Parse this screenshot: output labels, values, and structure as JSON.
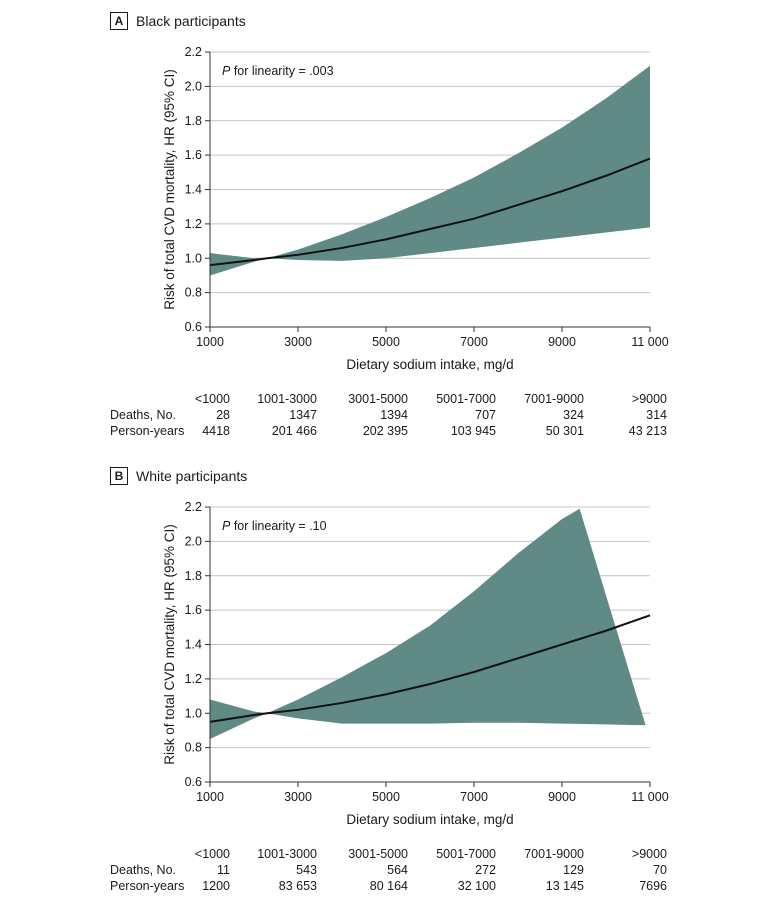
{
  "chart_data": [
    {
      "type": "line",
      "panel_letter": "A",
      "title": "Black participants",
      "xlabel": "Dietary sodium intake, mg/d",
      "ylabel": "Risk of total CVD mortality, HR (95% CI)",
      "xlim": [
        1000,
        11000
      ],
      "ylim": [
        0.6,
        2.2
      ],
      "xticks": [
        1000,
        3000,
        5000,
        7000,
        9000,
        11000
      ],
      "xtick_labels": [
        "1000",
        "3000",
        "5000",
        "7000",
        "9000",
        "11 000"
      ],
      "yticks": [
        0.6,
        0.8,
        1.0,
        1.2,
        1.4,
        1.6,
        1.8,
        2.0,
        2.2
      ],
      "ytick_labels": [
        "0.6",
        "0.8",
        "1.0",
        "1.2",
        "1.4",
        "1.6",
        "1.8",
        "2.0",
        "2.2"
      ],
      "grid": true,
      "annotation": {
        "p_label": "P",
        "rest": " for linearity = .003"
      },
      "series": [
        {
          "name": "HR",
          "x": [
            1000,
            2000,
            2300,
            3000,
            4000,
            5000,
            6000,
            7000,
            8000,
            9000,
            10000,
            11000
          ],
          "y": [
            0.96,
            0.99,
            1.0,
            1.02,
            1.06,
            1.11,
            1.17,
            1.23,
            1.31,
            1.39,
            1.48,
            1.58
          ]
        },
        {
          "name": "95% CI upper",
          "x": [
            1000,
            2000,
            2300,
            3000,
            4000,
            5000,
            6000,
            7000,
            8000,
            9000,
            10000,
            11000
          ],
          "y": [
            0.9,
            0.98,
            1.0,
            1.05,
            1.14,
            1.24,
            1.35,
            1.47,
            1.61,
            1.76,
            1.93,
            2.12
          ]
        },
        {
          "name": "95% CI lower",
          "x": [
            1000,
            2000,
            2300,
            3000,
            4000,
            5000,
            6000,
            7000,
            8000,
            9000,
            10000,
            11000
          ],
          "y": [
            1.03,
            1.0,
            1.0,
            0.99,
            0.985,
            1.0,
            1.03,
            1.06,
            1.09,
            1.12,
            1.15,
            1.18
          ]
        }
      ],
      "table": {
        "categories": [
          "<1000",
          "1001-3000",
          "3001-5000",
          "5001-7000",
          "7001-9000",
          ">9000"
        ],
        "rows": [
          {
            "label": "Deaths, No.",
            "values": [
              "28",
              "1347",
              "1394",
              "707",
              "324",
              "314"
            ]
          },
          {
            "label": "Person-years",
            "values": [
              "4418",
              "201 466",
              "202 395",
              "103 945",
              "50 301",
              "43 213"
            ]
          }
        ]
      }
    },
    {
      "type": "line",
      "panel_letter": "B",
      "title": "White participants",
      "xlabel": "Dietary sodium intake, mg/d",
      "ylabel": "Risk of total CVD mortality, HR (95% CI)",
      "xlim": [
        1000,
        11000
      ],
      "ylim": [
        0.6,
        2.2
      ],
      "xticks": [
        1000,
        3000,
        5000,
        7000,
        9000,
        11000
      ],
      "xtick_labels": [
        "1000",
        "3000",
        "5000",
        "7000",
        "9000",
        "11 000"
      ],
      "yticks": [
        0.6,
        0.8,
        1.0,
        1.2,
        1.4,
        1.6,
        1.8,
        2.0,
        2.2
      ],
      "ytick_labels": [
        "0.6",
        "0.8",
        "1.0",
        "1.2",
        "1.4",
        "1.6",
        "1.8",
        "2.0",
        "2.2"
      ],
      "grid": true,
      "annotation": {
        "p_label": "P",
        "rest": " for linearity = .10"
      },
      "series": [
        {
          "name": "HR",
          "x": [
            1000,
            2000,
            2300,
            3000,
            4000,
            5000,
            6000,
            7000,
            8000,
            9000,
            10000,
            11000
          ],
          "y": [
            0.95,
            0.99,
            1.0,
            1.02,
            1.06,
            1.11,
            1.17,
            1.24,
            1.32,
            1.4,
            1.48,
            1.57
          ]
        },
        {
          "name": "95% CI upper",
          "x": [
            1000,
            2000,
            2300,
            3000,
            4000,
            5000,
            6000,
            7000,
            8000,
            9000,
            9400,
            10900
          ],
          "y": [
            0.85,
            0.97,
            1.0,
            1.08,
            1.21,
            1.35,
            1.51,
            1.71,
            1.93,
            2.13,
            2.19,
            0.93
          ]
        },
        {
          "name": "95% CI lower",
          "x": [
            1000,
            2000,
            2300,
            3000,
            4000,
            5000,
            6000,
            7000,
            8000,
            9000,
            10000,
            10900
          ],
          "y": [
            1.08,
            1.01,
            1.0,
            0.97,
            0.94,
            0.94,
            0.94,
            0.945,
            0.945,
            0.94,
            0.935,
            0.93
          ]
        }
      ],
      "table": {
        "categories": [
          "<1000",
          "1001-3000",
          "3001-5000",
          "5001-7000",
          "7001-9000",
          ">9000"
        ],
        "rows": [
          {
            "label": "Deaths, No.",
            "values": [
              "11",
              "543",
              "564",
              "272",
              "129",
              "70"
            ]
          },
          {
            "label": "Person-years",
            "values": [
              "1200",
              "83 653",
              "80 164",
              "32 100",
              "13 145",
              "7696"
            ]
          }
        ]
      }
    }
  ],
  "colors": {
    "ci_band": "#5f8a86",
    "line": "#111111",
    "grid": "#c4c4c4",
    "axis": "#333333"
  }
}
